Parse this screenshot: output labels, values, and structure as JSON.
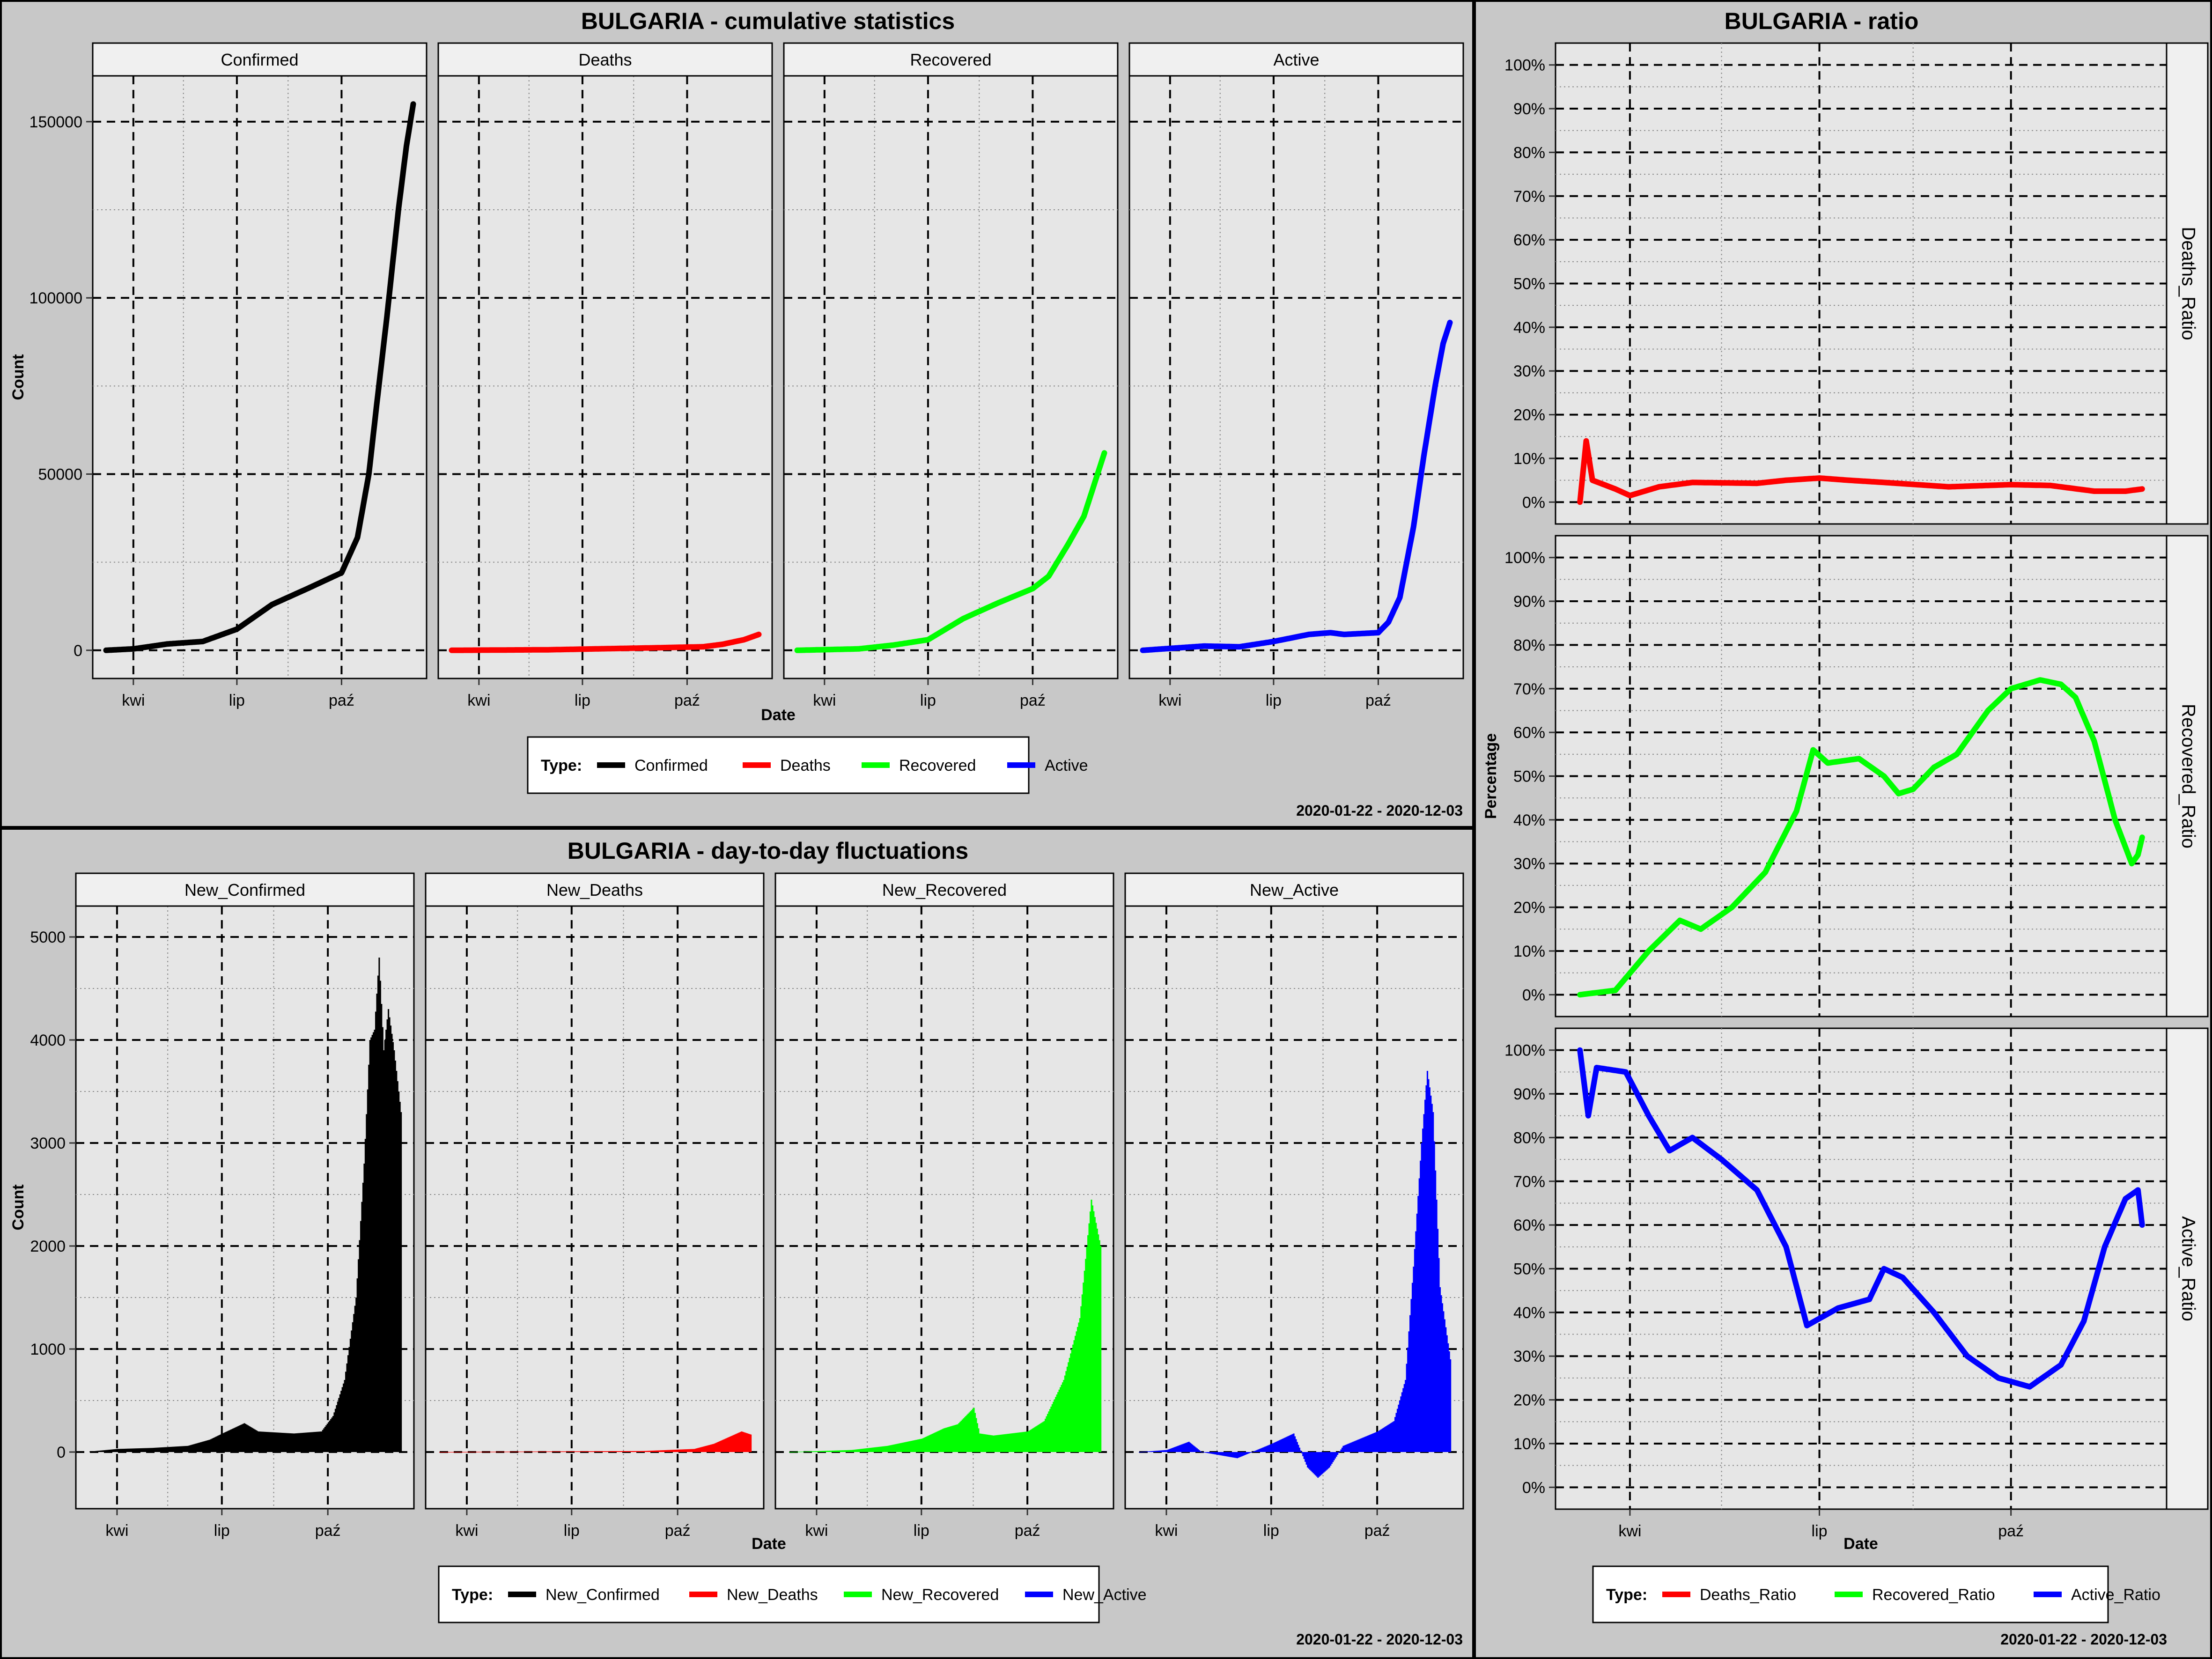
{
  "months": [
    "kwi",
    "lip",
    "paź"
  ],
  "colors": {
    "Confirmed": "#000000",
    "Deaths": "#ff0000",
    "Recovered": "#00ff00",
    "Active": "#0000ff",
    "panel": "#e6e6e6",
    "background": "#c8c8c8"
  },
  "cumulative": {
    "title": "BULGARIA - cumulative statistics",
    "ylabel": "Count",
    "xlabel": "Date",
    "date_range": "2020-01-22 - 2020-12-03",
    "legend_title": "Type:",
    "legend": [
      "Confirmed",
      "Deaths",
      "Recovered",
      "Active"
    ],
    "y_ticks": [
      "150000",
      "100000",
      "50000",
      "0"
    ]
  },
  "daily": {
    "title": "BULGARIA - day-to-day fluctuations",
    "ylabel": "Count",
    "xlabel": "Date",
    "date_range": "2020-01-22 - 2020-12-03",
    "legend_title": "Type:",
    "legend": [
      "New_Confirmed",
      "New_Deaths",
      "New_Recovered",
      "New_Active"
    ],
    "y_ticks": [
      "5000",
      "4000",
      "3000",
      "2000",
      "1000",
      "0"
    ]
  },
  "ratio": {
    "title": "BULGARIA - ratio",
    "ylabel": "Percentage",
    "xlabel": "Date",
    "date_range": "2020-01-22 - 2020-12-03",
    "legend_title": "Type:",
    "legend": [
      "Deaths_Ratio",
      "Recovered_Ratio",
      "Active_Ratio"
    ],
    "y_ticks": [
      "100%",
      "90%",
      "80%",
      "70%",
      "60%",
      "50%",
      "40%",
      "30%",
      "20%",
      "10%",
      "0%"
    ]
  },
  "chart_data": [
    {
      "type": "line",
      "title": "BULGARIA - cumulative statistics",
      "xlabel": "Date",
      "ylabel": "Count",
      "x_range": [
        "2020-03-08",
        "2020-12-03"
      ],
      "ylim": [
        -8000,
        163000
      ],
      "facets": [
        "Confirmed",
        "Deaths",
        "Recovered",
        "Active"
      ],
      "series": [
        {
          "name": "Confirmed",
          "points": [
            [
              "2020-03-08",
              0
            ],
            [
              "2020-04-01",
              400
            ],
            [
              "2020-05-01",
              1800
            ],
            [
              "2020-06-01",
              2500
            ],
            [
              "2020-07-01",
              6000
            ],
            [
              "2020-08-01",
              13000
            ],
            [
              "2020-09-01",
              17500
            ],
            [
              "2020-10-01",
              22000
            ],
            [
              "2020-10-15",
              32000
            ],
            [
              "2020-10-25",
              50000
            ],
            [
              "2020-11-01",
              70000
            ],
            [
              "2020-11-10",
              95000
            ],
            [
              "2020-11-20",
              125000
            ],
            [
              "2020-11-27",
              143000
            ],
            [
              "2020-12-03",
              155000
            ]
          ]
        },
        {
          "name": "Deaths",
          "points": [
            [
              "2020-03-08",
              0
            ],
            [
              "2020-06-01",
              150
            ],
            [
              "2020-09-01",
              700
            ],
            [
              "2020-10-15",
              1000
            ],
            [
              "2020-11-01",
              1700
            ],
            [
              "2020-11-20",
              3000
            ],
            [
              "2020-12-03",
              4500
            ]
          ]
        },
        {
          "name": "Recovered",
          "points": [
            [
              "2020-03-08",
              0
            ],
            [
              "2020-05-01",
              400
            ],
            [
              "2020-06-01",
              1500
            ],
            [
              "2020-07-01",
              3000
            ],
            [
              "2020-08-01",
              9000
            ],
            [
              "2020-09-01",
              13500
            ],
            [
              "2020-10-01",
              17500
            ],
            [
              "2020-10-15",
              21000
            ],
            [
              "2020-11-01",
              30000
            ],
            [
              "2020-11-15",
              38000
            ],
            [
              "2020-11-25",
              48000
            ],
            [
              "2020-12-03",
              56000
            ]
          ]
        },
        {
          "name": "Active",
          "points": [
            [
              "2020-03-08",
              0
            ],
            [
              "2020-05-01",
              1200
            ],
            [
              "2020-06-01",
              1000
            ],
            [
              "2020-07-01",
              2500
            ],
            [
              "2020-08-01",
              4500
            ],
            [
              "2020-08-20",
              5000
            ],
            [
              "2020-09-01",
              4500
            ],
            [
              "2020-10-01",
              5000
            ],
            [
              "2020-10-10",
              8000
            ],
            [
              "2020-10-20",
              15000
            ],
            [
              "2020-11-01",
              35000
            ],
            [
              "2020-11-10",
              55000
            ],
            [
              "2020-11-20",
              75000
            ],
            [
              "2020-11-27",
              87000
            ],
            [
              "2020-12-03",
              93000
            ]
          ]
        }
      ]
    },
    {
      "type": "bar",
      "title": "BULGARIA - day-to-day fluctuations",
      "xlabel": "Date",
      "ylabel": "Count",
      "x_range": [
        "2020-03-08",
        "2020-12-03"
      ],
      "ylim": [
        -550,
        5300
      ],
      "facets": [
        "New_Confirmed",
        "New_Deaths",
        "New_Recovered",
        "New_Active"
      ],
      "series": [
        {
          "name": "New_Confirmed",
          "points": [
            [
              "2020-03-08",
              5
            ],
            [
              "2020-04-01",
              30
            ],
            [
              "2020-05-01",
              40
            ],
            [
              "2020-06-01",
              60
            ],
            [
              "2020-06-20",
              120
            ],
            [
              "2020-07-01",
              180
            ],
            [
              "2020-07-20",
              280
            ],
            [
              "2020-08-01",
              200
            ],
            [
              "2020-09-01",
              180
            ],
            [
              "2020-09-25",
              200
            ],
            [
              "2020-10-05",
              350
            ],
            [
              "2020-10-15",
              700
            ],
            [
              "2020-10-25",
              1500
            ],
            [
              "2020-11-01",
              2800
            ],
            [
              "2020-11-06",
              4000
            ],
            [
              "2020-11-10",
              4100
            ],
            [
              "2020-11-14",
              4800
            ],
            [
              "2020-11-18",
              3900
            ],
            [
              "2020-11-22",
              4300
            ],
            [
              "2020-11-27",
              3900
            ],
            [
              "2020-12-03",
              3300
            ]
          ]
        },
        {
          "name": "New_Deaths",
          "points": [
            [
              "2020-03-08",
              0
            ],
            [
              "2020-06-01",
              5
            ],
            [
              "2020-09-01",
              10
            ],
            [
              "2020-10-15",
              30
            ],
            [
              "2020-11-01",
              80
            ],
            [
              "2020-11-15",
              150
            ],
            [
              "2020-11-25",
              200
            ],
            [
              "2020-12-03",
              170
            ]
          ]
        },
        {
          "name": "New_Recovered",
          "points": [
            [
              "2020-03-08",
              0
            ],
            [
              "2020-05-01",
              20
            ],
            [
              "2020-06-01",
              60
            ],
            [
              "2020-07-01",
              130
            ],
            [
              "2020-07-20",
              230
            ],
            [
              "2020-08-01",
              270
            ],
            [
              "2020-08-15",
              430
            ],
            [
              "2020-08-20",
              180
            ],
            [
              "2020-09-01",
              160
            ],
            [
              "2020-10-01",
              200
            ],
            [
              "2020-10-15",
              300
            ],
            [
              "2020-11-01",
              700
            ],
            [
              "2020-11-15",
              1300
            ],
            [
              "2020-11-25",
              2450
            ],
            [
              "2020-12-03",
              2000
            ]
          ]
        },
        {
          "name": "New_Active",
          "points": [
            [
              "2020-03-08",
              0
            ],
            [
              "2020-04-01",
              20
            ],
            [
              "2020-04-20",
              100
            ],
            [
              "2020-05-01",
              0
            ],
            [
              "2020-06-01",
              -60
            ],
            [
              "2020-07-01",
              80
            ],
            [
              "2020-07-20",
              180
            ],
            [
              "2020-08-01",
              -150
            ],
            [
              "2020-08-10",
              -250
            ],
            [
              "2020-08-20",
              -150
            ],
            [
              "2020-09-01",
              60
            ],
            [
              "2020-10-01",
              200
            ],
            [
              "2020-10-15",
              300
            ],
            [
              "2020-10-25",
              700
            ],
            [
              "2020-11-01",
              1800
            ],
            [
              "2020-11-08",
              3000
            ],
            [
              "2020-11-13",
              3700
            ],
            [
              "2020-11-18",
              3300
            ],
            [
              "2020-11-24",
              1600
            ],
            [
              "2020-12-03",
              900
            ]
          ]
        }
      ]
    },
    {
      "type": "line",
      "title": "BULGARIA - ratio",
      "xlabel": "Date",
      "ylabel": "Percentage",
      "x_range": [
        "2020-03-08",
        "2020-12-03"
      ],
      "ylim": [
        -5,
        105
      ],
      "facets": [
        "Deaths_Ratio",
        "Recovered_Ratio",
        "Active_Ratio"
      ],
      "series": [
        {
          "name": "Deaths_Ratio",
          "points": [
            [
              "2020-03-08",
              0
            ],
            [
              "2020-03-11",
              14
            ],
            [
              "2020-03-14",
              5
            ],
            [
              "2020-03-25",
              3
            ],
            [
              "2020-04-01",
              1.5
            ],
            [
              "2020-04-15",
              3.5
            ],
            [
              "2020-05-01",
              4.5
            ],
            [
              "2020-06-01",
              4.3
            ],
            [
              "2020-06-15",
              5
            ],
            [
              "2020-07-01",
              5.5
            ],
            [
              "2020-07-15",
              5
            ],
            [
              "2020-08-01",
              4.5
            ],
            [
              "2020-09-01",
              3.5
            ],
            [
              "2020-10-01",
              4
            ],
            [
              "2020-10-20",
              3.8
            ],
            [
              "2020-11-10",
              2.5
            ],
            [
              "2020-11-25",
              2.5
            ],
            [
              "2020-12-03",
              3
            ]
          ]
        },
        {
          "name": "Recovered_Ratio",
          "points": [
            [
              "2020-03-08",
              0
            ],
            [
              "2020-03-25",
              1
            ],
            [
              "2020-04-10",
              10
            ],
            [
              "2020-04-25",
              17
            ],
            [
              "2020-05-05",
              15
            ],
            [
              "2020-05-20",
              20
            ],
            [
              "2020-06-05",
              28
            ],
            [
              "2020-06-20",
              42
            ],
            [
              "2020-06-28",
              56
            ],
            [
              "2020-07-05",
              53
            ],
            [
              "2020-07-20",
              54
            ],
            [
              "2020-08-01",
              50
            ],
            [
              "2020-08-08",
              46
            ],
            [
              "2020-08-15",
              47
            ],
            [
              "2020-08-25",
              52
            ],
            [
              "2020-09-05",
              55
            ],
            [
              "2020-09-20",
              65
            ],
            [
              "2020-10-01",
              70
            ],
            [
              "2020-10-15",
              72
            ],
            [
              "2020-10-25",
              71
            ],
            [
              "2020-11-01",
              68
            ],
            [
              "2020-11-10",
              58
            ],
            [
              "2020-11-20",
              40
            ],
            [
              "2020-11-28",
              30
            ],
            [
              "2020-12-01",
              32
            ],
            [
              "2020-12-03",
              36
            ]
          ]
        },
        {
          "name": "Active_Ratio",
          "points": [
            [
              "2020-03-08",
              100
            ],
            [
              "2020-03-12",
              85
            ],
            [
              "2020-03-16",
              96
            ],
            [
              "2020-03-30",
              95
            ],
            [
              "2020-04-10",
              85
            ],
            [
              "2020-04-20",
              77
            ],
            [
              "2020-05-01",
              80
            ],
            [
              "2020-05-15",
              75
            ],
            [
              "2020-06-01",
              68
            ],
            [
              "2020-06-15",
              55
            ],
            [
              "2020-06-25",
              37
            ],
            [
              "2020-07-10",
              41
            ],
            [
              "2020-07-25",
              43
            ],
            [
              "2020-08-01",
              50
            ],
            [
              "2020-08-10",
              48
            ],
            [
              "2020-08-25",
              40
            ],
            [
              "2020-09-10",
              30
            ],
            [
              "2020-09-25",
              25
            ],
            [
              "2020-10-10",
              23
            ],
            [
              "2020-10-25",
              28
            ],
            [
              "2020-11-05",
              38
            ],
            [
              "2020-11-15",
              55
            ],
            [
              "2020-11-25",
              66
            ],
            [
              "2020-12-01",
              68
            ],
            [
              "2020-12-03",
              60
            ]
          ]
        }
      ]
    }
  ]
}
